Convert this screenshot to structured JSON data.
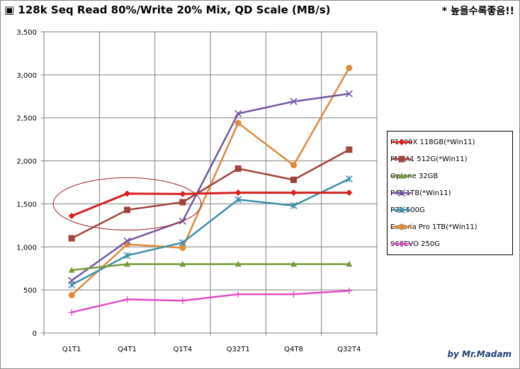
{
  "header": {
    "title_icon": "▣",
    "title": "128k Seq Read 80%/Write 20% Mix, QD Scale (MB/s)",
    "note": "* 높을수록좋음!!",
    "credit": "by Mr.Madam"
  },
  "colors": {
    "grid": "#7f7f7f",
    "axis": "#7f7f7f",
    "ellipse": "#a0202a"
  },
  "chart_data": {
    "type": "line",
    "title": "128k Seq Read 80%/Write 20% Mix, QD Scale (MB/s)",
    "xlabel": "",
    "ylabel": "",
    "categories": [
      "Q1T1",
      "Q4T1",
      "Q1T4",
      "Q32T1",
      "Q4T8",
      "Q32T4"
    ],
    "ylim": [
      0,
      3500
    ],
    "y_ticks": [
      0,
      500,
      1000,
      1500,
      2000,
      2500,
      3000,
      3500
    ],
    "y_tick_labels": [
      "0",
      "500",
      "1,000",
      "1,500",
      "2,000",
      "2,500",
      "3,000",
      "3,500"
    ],
    "grid": true,
    "legend_position": "right",
    "annotation": "ellipse highlighting P1600X 118GB(*Win11) at Q1T1–Q1T4",
    "series": [
      {
        "name": "P1600X 118GB(*Win11)",
        "color": "#d62020",
        "marker": "diamond",
        "width": 3,
        "values": [
          1360,
          1620,
          1615,
          1630,
          1630,
          1630
        ]
      },
      {
        "name": "PM9A1 512G(*Win11)",
        "color": "#a0433a",
        "marker": "square",
        "width": 2.5,
        "values": [
          1100,
          1430,
          1520,
          1910,
          1780,
          2130
        ]
      },
      {
        "name": "Optane 32GB",
        "color": "#779a3b",
        "marker": "triangle",
        "width": 2.5,
        "values": [
          730,
          800,
          800,
          800,
          800,
          800
        ]
      },
      {
        "name": "P41 1TB(*Win11)",
        "color": "#7558a0",
        "marker": "x",
        "width": 2.5,
        "values": [
          610,
          1070,
          1300,
          2550,
          2690,
          2780
        ]
      },
      {
        "name": "P31 500G",
        "color": "#3a8ea8",
        "marker": "star",
        "width": 2.5,
        "values": [
          560,
          900,
          1050,
          1550,
          1480,
          1790
        ]
      },
      {
        "name": "Exceria Pro 1TB(*Win11)",
        "color": "#e08a3c",
        "marker": "circle",
        "width": 2.5,
        "values": [
          440,
          1030,
          990,
          2440,
          1950,
          3080
        ]
      },
      {
        "name": "960EVO 250G",
        "color": "#e04cc8",
        "marker": "plus",
        "width": 2.5,
        "values": [
          240,
          390,
          375,
          450,
          450,
          490
        ]
      }
    ]
  }
}
